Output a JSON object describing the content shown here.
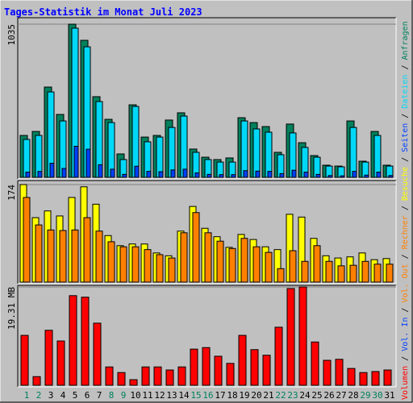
{
  "chart_data": {
    "type": "bar",
    "title": "Tages-Statistik im Monat Juli 2023",
    "categories": [
      "1",
      "2",
      "3",
      "4",
      "5",
      "6",
      "7",
      "8",
      "9",
      "10",
      "11",
      "12",
      "13",
      "14",
      "15",
      "16",
      "17",
      "18",
      "19",
      "20",
      "21",
      "22",
      "23",
      "24",
      "25",
      "26",
      "27",
      "28",
      "29",
      "30",
      "31"
    ],
    "category_colors": [
      "#00805C",
      "#00805C",
      "#000000",
      "#000000",
      "#000000",
      "#000000",
      "#000000",
      "#00805C",
      "#00805C",
      "#000000",
      "#000000",
      "#000000",
      "#000000",
      "#000000",
      "#00805C",
      "#00805C",
      "#000000",
      "#000000",
      "#000000",
      "#000000",
      "#000000",
      "#00805C",
      "#00805C",
      "#000000",
      "#000000",
      "#000000",
      "#000000",
      "#000000",
      "#00805C",
      "#00805C",
      "#000000"
    ],
    "legend_separator": " / ",
    "legend_extra": [
      {
        "text": "Vol. In",
        "color": "#0040FF"
      },
      {
        "text": "Vol. Out",
        "color": "#FF8000"
      }
    ],
    "panels": [
      {
        "ylim": [
          0,
          1035
        ],
        "yticks": [
          1035
        ],
        "series": [
          {
            "name": "Anfragen",
            "color": "#00805C",
            "values": [
              283,
              310,
              610,
              425,
              1035,
              926,
              545,
              392,
              158,
              490,
              272,
              283,
              387,
              436,
              191,
              136,
              120,
              131,
              403,
              370,
              343,
              169,
              360,
              234,
              147,
              82,
              76,
              381,
              109,
              310,
              82
            ]
          },
          {
            "name": "Dateien",
            "color": "#00D8F8",
            "values": [
              256,
              283,
              577,
              381,
              1008,
              882,
              512,
              370,
              120,
              479,
              240,
              272,
              337,
              414,
              169,
              120,
              103,
              103,
              381,
              327,
              305,
              153,
              300,
              202,
              136,
              76,
              71,
              337,
              103,
              283,
              76
            ]
          },
          {
            "name": "Seiten",
            "color": "#0040FF",
            "values": [
              35,
              40,
              95,
              60,
              210,
              190,
              85,
              55,
              20,
              75,
              40,
              38,
              50,
              55,
              30,
              20,
              18,
              18,
              45,
              42,
              40,
              25,
              48,
              35,
              20,
              12,
              10,
              40,
              15,
              35,
              12
            ]
          }
        ]
      },
      {
        "ylim": [
          0,
          174
        ],
        "yticks": [
          174
        ],
        "series": [
          {
            "name": "Besuche",
            "color": "#FFFF00",
            "values": [
              174,
              115,
              127,
              118,
              151,
              170,
              139,
              83,
              65,
              68,
              68,
              52,
              47,
              91,
              135,
              96,
              81,
              62,
              85,
              76,
              63,
              58,
              121,
              116,
              78,
              47,
              43,
              45,
              52,
              40,
              42
            ]
          },
          {
            "name": "Rechner",
            "color": "#FF8000",
            "values": [
              151,
              102,
              93,
              92,
              93,
              115,
              91,
              72,
              63,
              63,
              58,
              49,
              43,
              88,
              124,
              88,
              73,
              60,
              78,
              63,
              53,
              24,
              56,
              37,
              65,
              37,
              29,
              30,
              37,
              32,
              32
            ]
          }
        ]
      },
      {
        "ylim": [
          0,
          19.31
        ],
        "yticks": [
          {
            "value": 19.31,
            "label": "19.31 MB"
          }
        ],
        "series": [
          {
            "name": "Volumen",
            "color": "#FF0000",
            "values": [
              9.8,
              1.7,
              10.8,
              8.7,
              17.6,
              17.3,
              12.2,
              3.6,
              2.5,
              1.1,
              3.6,
              3.6,
              3.0,
              3.6,
              7.1,
              7.4,
              5.7,
              4.3,
              9.8,
              7.0,
              5.9,
              11.4,
              19.0,
              19.31,
              8.5,
              4.9,
              5.1,
              3.3,
              2.5,
              2.7,
              3.0
            ]
          }
        ]
      }
    ]
  }
}
